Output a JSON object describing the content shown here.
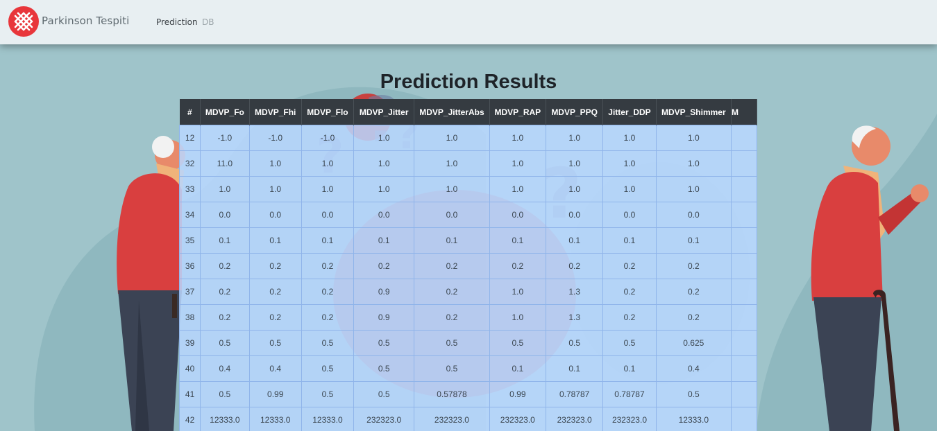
{
  "nav": {
    "brand": "Parkinson Tespiti",
    "links": [
      "Prediction",
      "DB"
    ]
  },
  "page": {
    "title": "Prediction Results"
  },
  "table": {
    "columns": [
      "#",
      "MDVP_Fo",
      "MDVP_Fhi",
      "MDVP_Flo",
      "MDVP_Jitter",
      "MDVP_JitterAbs",
      "MDVP_RAP",
      "MDVP_PPQ",
      "Jitter_DDP",
      "MDVP_Shimmer",
      "M"
    ],
    "rows": [
      [
        "12",
        "-1.0",
        "-1.0",
        "-1.0",
        "1.0",
        "1.0",
        "1.0",
        "1.0",
        "1.0",
        "1.0",
        ""
      ],
      [
        "32",
        "11.0",
        "1.0",
        "1.0",
        "1.0",
        "1.0",
        "1.0",
        "1.0",
        "1.0",
        "1.0",
        ""
      ],
      [
        "33",
        "1.0",
        "1.0",
        "1.0",
        "1.0",
        "1.0",
        "1.0",
        "1.0",
        "1.0",
        "1.0",
        ""
      ],
      [
        "34",
        "0.0",
        "0.0",
        "0.0",
        "0.0",
        "0.0",
        "0.0",
        "0.0",
        "0.0",
        "0.0",
        ""
      ],
      [
        "35",
        "0.1",
        "0.1",
        "0.1",
        "0.1",
        "0.1",
        "0.1",
        "0.1",
        "0.1",
        "0.1",
        ""
      ],
      [
        "36",
        "0.2",
        "0.2",
        "0.2",
        "0.2",
        "0.2",
        "0.2",
        "0.2",
        "0.2",
        "0.2",
        ""
      ],
      [
        "37",
        "0.2",
        "0.2",
        "0.2",
        "0.9",
        "0.2",
        "1.0",
        "1.3",
        "0.2",
        "0.2",
        ""
      ],
      [
        "38",
        "0.2",
        "0.2",
        "0.2",
        "0.9",
        "0.2",
        "1.0",
        "1.3",
        "0.2",
        "0.2",
        ""
      ],
      [
        "39",
        "0.5",
        "0.5",
        "0.5",
        "0.5",
        "0.5",
        "0.5",
        "0.5",
        "0.5",
        "0.625",
        ""
      ],
      [
        "40",
        "0.4",
        "0.4",
        "0.5",
        "0.5",
        "0.5",
        "0.1",
        "0.1",
        "0.1",
        "0.4",
        ""
      ],
      [
        "41",
        "0.5",
        "0.99",
        "0.5",
        "0.5",
        "0.57878",
        "0.99",
        "0.78787",
        "0.78787",
        "0.5",
        ""
      ],
      [
        "42",
        "12333.0",
        "12333.0",
        "12333.0",
        "232323.0",
        "232323.0",
        "232323.0",
        "232323.0",
        "232323.0",
        "12333.0",
        ""
      ]
    ]
  },
  "colors": {
    "navbar_bg": "#e8eff2",
    "logo_red": "#e8363b",
    "header_bg": "#353b41",
    "cell_bg": "#b9d7ff",
    "page_bg": "#9fc4ca"
  }
}
